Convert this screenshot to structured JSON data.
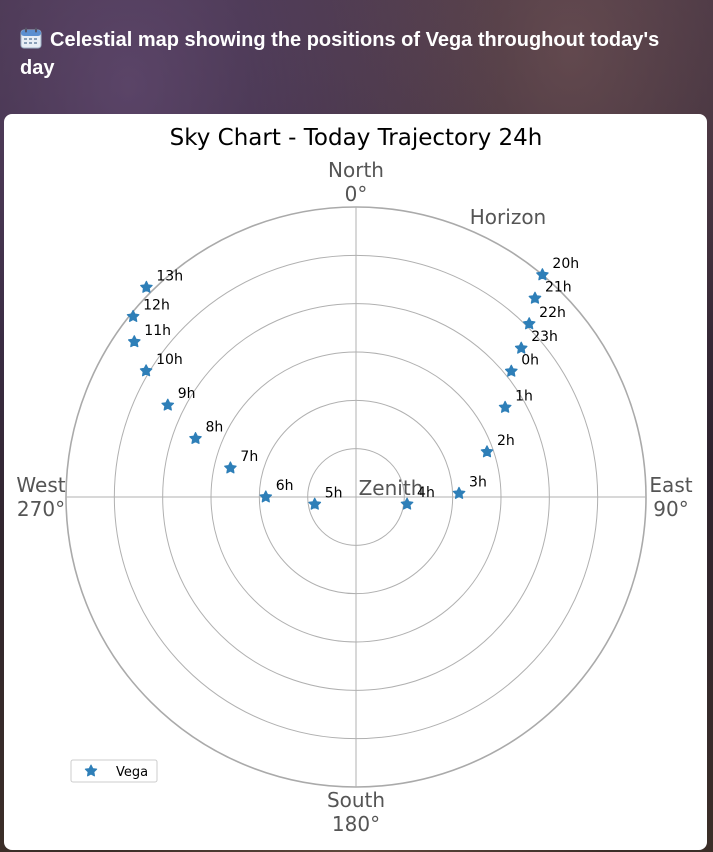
{
  "page": {
    "title": "Celestial map showing the positions of Vega throughout today's day",
    "title_icon": "calendar-icon"
  },
  "chart_data": {
    "type": "polar-scatter",
    "title": "Sky Chart - Today Trajectory 24h",
    "direction_labels": {
      "north": [
        "North",
        "0°"
      ],
      "east": [
        "East",
        "90°"
      ],
      "south": [
        "South",
        "180°"
      ],
      "west": [
        "West",
        "270°"
      ]
    },
    "horizon_label": "Horizon",
    "zenith_label": "Zenith",
    "radial_axis": "altitude (90° at center, 0° at horizon)",
    "radial_gridlines_deg": [
      90,
      75,
      60,
      45,
      30,
      15,
      0
    ],
    "azimuth_gridlines_deg": [
      0,
      90,
      180,
      270
    ],
    "marker": "star",
    "series": [
      {
        "name": "Vega",
        "color": "#2e7fb8",
        "points": [
          {
            "label": "0h",
            "az": 51,
            "alt": 28
          },
          {
            "label": "1h",
            "az": 59,
            "alt": 36
          },
          {
            "label": "2h",
            "az": 71,
            "alt": 47
          },
          {
            "label": "3h",
            "az": 88,
            "alt": 58
          },
          {
            "label": "4h",
            "az": 98,
            "alt": 74
          },
          {
            "label": "5h",
            "az": 260,
            "alt": 77
          },
          {
            "label": "6h",
            "az": 270,
            "alt": 62
          },
          {
            "label": "7h",
            "az": 283,
            "alt": 50
          },
          {
            "label": "8h",
            "az": 290,
            "alt": 37
          },
          {
            "label": "9h",
            "az": 296,
            "alt": 25
          },
          {
            "label": "10h",
            "az": 301,
            "alt": 14
          },
          {
            "label": "11h",
            "az": 305,
            "alt": 6
          },
          {
            "label": "12h",
            "az": 309,
            "alt": 1
          },
          {
            "label": "13h",
            "az": 315,
            "alt": -2
          },
          {
            "label": "20h",
            "az": 40,
            "alt": 0
          },
          {
            "label": "21h",
            "az": 42,
            "alt": 7
          },
          {
            "label": "22h",
            "az": 45,
            "alt": 14
          },
          {
            "label": "23h",
            "az": 48,
            "alt": 21
          }
        ]
      }
    ],
    "legend": {
      "position": "lower-left",
      "entries": [
        "Vega"
      ]
    }
  }
}
